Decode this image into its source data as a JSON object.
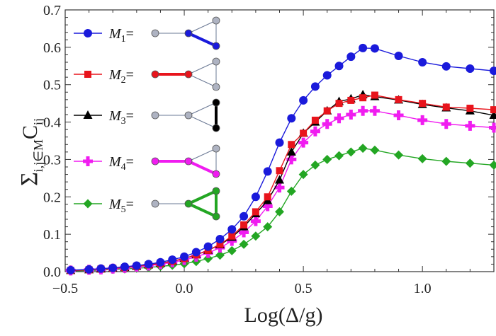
{
  "chart_data": {
    "type": "line",
    "xlabel": "Log(Δ/g)",
    "ylabel": "Σ_{i,j∈M}C_ij",
    "ylabel_parts": {
      "sigma": "Σ",
      "sub": "i,j∈M",
      "main": "C",
      "main_sub": "ij"
    },
    "xlim": [
      -0.5,
      1.3
    ],
    "ylim": [
      0.0,
      0.7
    ],
    "x_ticks": [
      -0.5,
      0.0,
      0.5,
      1.0
    ],
    "x_tick_labels": [
      "−0.5",
      "0.0",
      "0.5",
      "1.0"
    ],
    "y_ticks": [
      0.0,
      0.1,
      0.2,
      0.3,
      0.4,
      0.5,
      0.6,
      0.7
    ],
    "y_tick_labels": [
      "0.0",
      "0.1",
      "0.2",
      "0.3",
      "0.4",
      "0.5",
      "0.6",
      "0.7"
    ],
    "grid": false,
    "legend_position": "top-left",
    "series": [
      {
        "name": "M1",
        "label_base": "M",
        "label_sub": "1",
        "label_eq": "=",
        "color": "#1a1adb",
        "marker": "circle",
        "x": [
          -0.477,
          -0.4,
          -0.35,
          -0.3,
          -0.25,
          -0.2,
          -0.15,
          -0.1,
          -0.05,
          0.0,
          0.05,
          0.1,
          0.15,
          0.2,
          0.25,
          0.3,
          0.35,
          0.4,
          0.45,
          0.5,
          0.55,
          0.6,
          0.65,
          0.7,
          0.75,
          0.8,
          0.9,
          1.0,
          1.1,
          1.2,
          1.3
        ],
        "y": [
          0.004,
          0.006,
          0.008,
          0.01,
          0.013,
          0.016,
          0.02,
          0.025,
          0.032,
          0.04,
          0.052,
          0.067,
          0.087,
          0.113,
          0.148,
          0.2,
          0.268,
          0.345,
          0.41,
          0.458,
          0.495,
          0.525,
          0.55,
          0.575,
          0.598,
          0.597,
          0.577,
          0.56,
          0.549,
          0.543,
          0.537
        ]
      },
      {
        "name": "M2",
        "label_base": "M",
        "label_sub": "2",
        "label_eq": "=",
        "color": "#e8141c",
        "marker": "square",
        "x": [
          -0.477,
          -0.4,
          -0.35,
          -0.3,
          -0.25,
          -0.2,
          -0.15,
          -0.1,
          -0.05,
          0.0,
          0.05,
          0.1,
          0.15,
          0.2,
          0.25,
          0.3,
          0.35,
          0.4,
          0.45,
          0.5,
          0.55,
          0.6,
          0.65,
          0.7,
          0.75,
          0.8,
          0.9,
          1.0,
          1.1,
          1.2,
          1.3
        ],
        "y": [
          0.003,
          0.005,
          0.007,
          0.009,
          0.011,
          0.014,
          0.018,
          0.022,
          0.028,
          0.035,
          0.045,
          0.057,
          0.073,
          0.095,
          0.125,
          0.16,
          0.2,
          0.27,
          0.34,
          0.37,
          0.405,
          0.43,
          0.45,
          0.458,
          0.465,
          0.472,
          0.46,
          0.45,
          0.44,
          0.437,
          0.433
        ]
      },
      {
        "name": "M3",
        "label_base": "M",
        "label_sub": "3",
        "label_eq": "=",
        "color": "#000000",
        "marker": "triangle",
        "x": [
          -0.477,
          -0.4,
          -0.35,
          -0.3,
          -0.25,
          -0.2,
          -0.15,
          -0.1,
          -0.05,
          0.0,
          0.05,
          0.1,
          0.15,
          0.2,
          0.25,
          0.3,
          0.35,
          0.4,
          0.45,
          0.5,
          0.55,
          0.6,
          0.65,
          0.7,
          0.75,
          0.8,
          0.9,
          1.0,
          1.1,
          1.2,
          1.3
        ],
        "y": [
          0.003,
          0.005,
          0.007,
          0.009,
          0.011,
          0.014,
          0.018,
          0.022,
          0.028,
          0.035,
          0.045,
          0.057,
          0.072,
          0.092,
          0.12,
          0.155,
          0.19,
          0.245,
          0.32,
          0.37,
          0.4,
          0.43,
          0.455,
          0.462,
          0.473,
          0.468,
          0.459,
          0.447,
          0.438,
          0.43,
          0.418
        ]
      },
      {
        "name": "M4",
        "label_base": "M",
        "label_sub": "4",
        "label_eq": "=",
        "color": "#f01cf0",
        "marker": "plus",
        "x": [
          -0.477,
          -0.4,
          -0.35,
          -0.3,
          -0.25,
          -0.2,
          -0.15,
          -0.1,
          -0.05,
          0.0,
          0.05,
          0.1,
          0.15,
          0.2,
          0.25,
          0.3,
          0.35,
          0.4,
          0.45,
          0.5,
          0.55,
          0.6,
          0.65,
          0.7,
          0.75,
          0.8,
          0.9,
          1.0,
          1.1,
          1.2,
          1.3
        ],
        "y": [
          0.003,
          0.005,
          0.006,
          0.008,
          0.01,
          0.013,
          0.016,
          0.02,
          0.025,
          0.031,
          0.04,
          0.05,
          0.064,
          0.082,
          0.105,
          0.135,
          0.175,
          0.225,
          0.3,
          0.345,
          0.375,
          0.395,
          0.41,
          0.42,
          0.43,
          0.43,
          0.418,
          0.405,
          0.395,
          0.39,
          0.385
        ]
      },
      {
        "name": "M5",
        "label_base": "M",
        "label_sub": "5",
        "label_eq": "=",
        "color": "#23a623",
        "marker": "diamond",
        "x": [
          -0.477,
          -0.4,
          -0.35,
          -0.3,
          -0.25,
          -0.2,
          -0.15,
          -0.1,
          -0.05,
          0.0,
          0.05,
          0.1,
          0.15,
          0.2,
          0.25,
          0.3,
          0.35,
          0.4,
          0.45,
          0.5,
          0.55,
          0.6,
          0.65,
          0.7,
          0.75,
          0.8,
          0.9,
          1.0,
          1.1,
          1.2,
          1.3
        ],
        "y": [
          0.002,
          0.003,
          0.004,
          0.006,
          0.007,
          0.009,
          0.011,
          0.014,
          0.017,
          0.021,
          0.027,
          0.035,
          0.044,
          0.056,
          0.073,
          0.095,
          0.12,
          0.16,
          0.215,
          0.26,
          0.285,
          0.3,
          0.31,
          0.32,
          0.33,
          0.325,
          0.312,
          0.302,
          0.295,
          0.29,
          0.285
        ]
      }
    ]
  },
  "legend_graph_colors": {
    "node_gray": "#aeb3c2",
    "edge_gray": "#6a7894"
  }
}
